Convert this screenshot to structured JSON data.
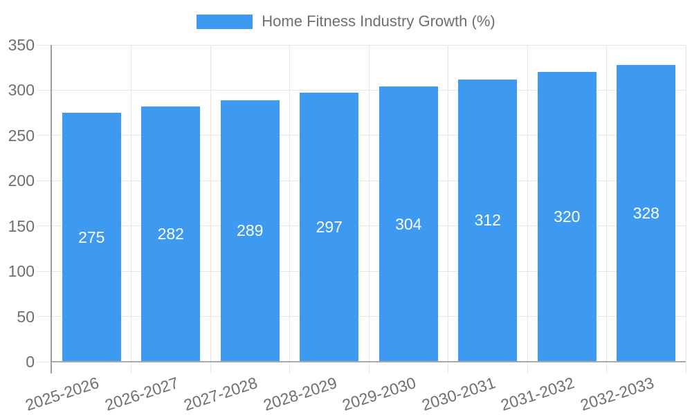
{
  "legend": {
    "label": "Home Fitness Industry Growth (%)"
  },
  "chart_data": {
    "type": "bar",
    "title": "Home Fitness Industry Growth (%)",
    "series_name": "Home Fitness Industry Growth (%)",
    "categories": [
      "2025-2026",
      "2026-2027",
      "2027-2028",
      "2028-2029",
      "2029-2030",
      "2030-2031",
      "2031-2032",
      "2032-2033"
    ],
    "values": [
      275,
      282,
      289,
      297,
      304,
      312,
      320,
      328
    ],
    "value_labels": [
      "275",
      "282",
      "289",
      "297",
      "304",
      "312",
      "320",
      "328"
    ],
    "ylim": [
      0,
      350
    ],
    "ytick_step": 50,
    "yticks": [
      0,
      50,
      100,
      150,
      200,
      250,
      300,
      350
    ],
    "grid": true,
    "legend_position": "top",
    "xlabel": "",
    "ylabel": "",
    "colors": {
      "bar": "#3d9af0",
      "value_label": "#ffffff",
      "axis_text": "#6f6f6f",
      "gridline": "#e6e6e6",
      "axis_line": "#9e9e9e",
      "x_axis_line": "#a9a9a9"
    },
    "x_label_rotation_deg": -18
  }
}
